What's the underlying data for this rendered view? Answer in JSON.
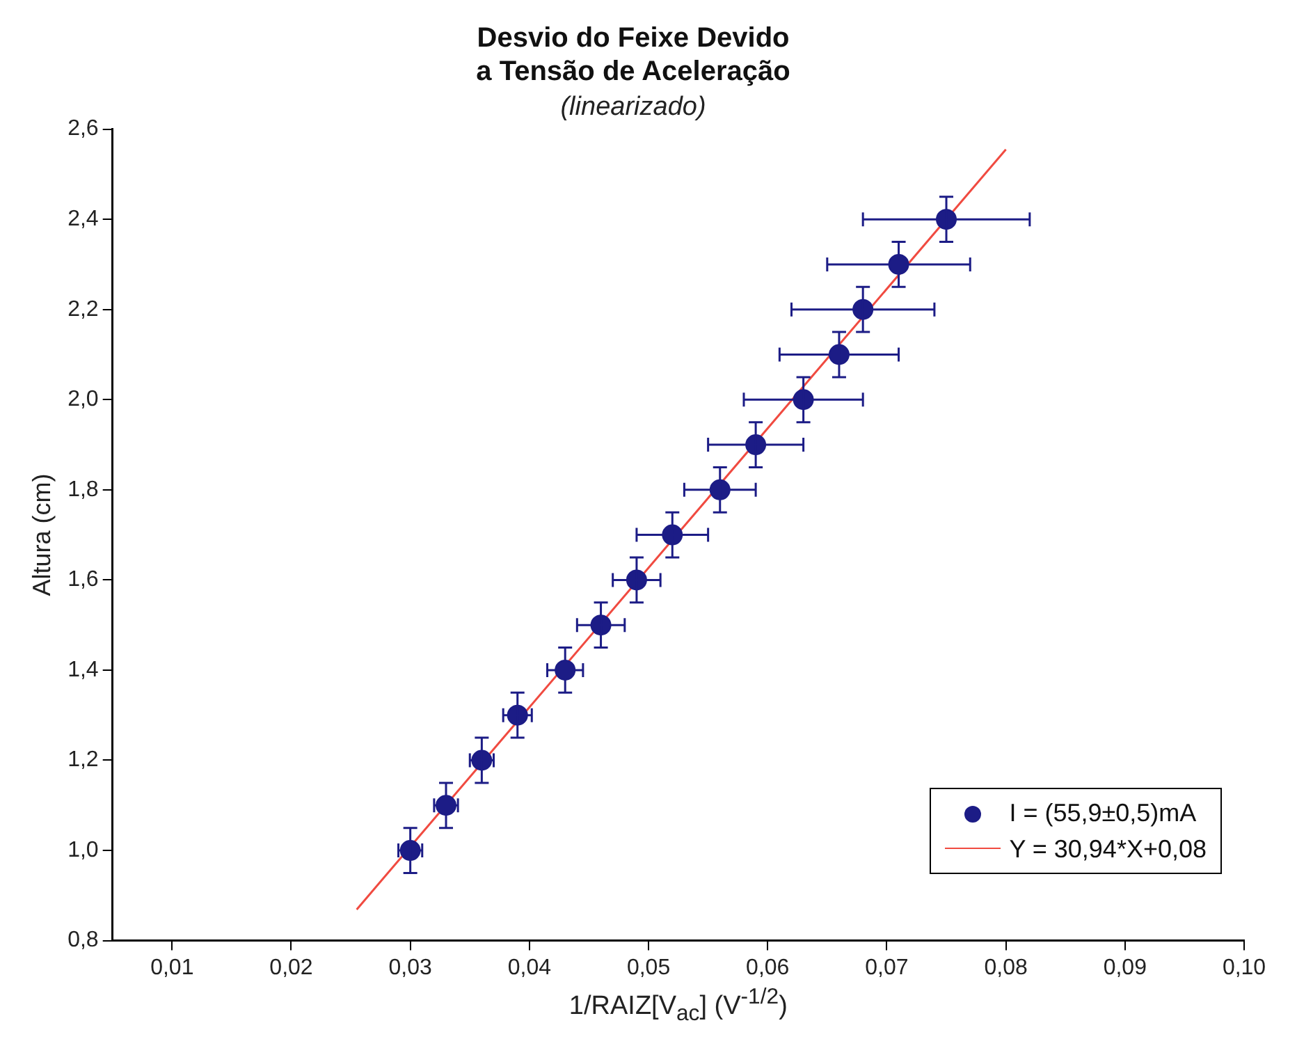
{
  "chart_data": {
    "type": "scatter",
    "title": [
      "Desvio do Feixe Devido",
      "a Tensão de Aceleração"
    ],
    "subtitle": "(linearizado)",
    "xlabel": "1/RAIZ[V$_{ac}$] (V$^{-1/2}$)",
    "ylabel": "Altura (cm)",
    "xlim": [
      0.005,
      0.1
    ],
    "xticks": [
      {
        "value": 0.01,
        "label": "0,01"
      },
      {
        "value": 0.02,
        "label": "0,02"
      },
      {
        "value": 0.03,
        "label": "0,03"
      },
      {
        "value": 0.04,
        "label": "0,04"
      },
      {
        "value": 0.05,
        "label": "0,05"
      },
      {
        "value": 0.06,
        "label": "0,06"
      },
      {
        "value": 0.07,
        "label": "0,07"
      },
      {
        "value": 0.08,
        "label": "0,08"
      },
      {
        "value": 0.09,
        "label": "0,09"
      },
      {
        "value": 0.1,
        "label": "0,10"
      }
    ],
    "ylim": [
      0.8,
      2.6
    ],
    "yticks": [
      {
        "value": 0.8,
        "label": "0,8"
      },
      {
        "value": 1.0,
        "label": "1,0"
      },
      {
        "value": 1.2,
        "label": "1,2"
      },
      {
        "value": 1.4,
        "label": "1,4"
      },
      {
        "value": 1.6,
        "label": "1,6"
      },
      {
        "value": 1.8,
        "label": "1,8"
      },
      {
        "value": 2.0,
        "label": "2,0"
      },
      {
        "value": 2.2,
        "label": "2,2"
      },
      {
        "value": 2.4,
        "label": "2,4"
      },
      {
        "value": 2.6,
        "label": "2,6"
      }
    ],
    "grid": false,
    "legend": "bottom right",
    "marker": "circle",
    "series": [
      {
        "name": "I = (55,9±0,5)mA",
        "color": "#1c1c86",
        "x": [
          0.03,
          0.033,
          0.036,
          0.039,
          0.043,
          0.046,
          0.049,
          0.052,
          0.056,
          0.059,
          0.063,
          0.066,
          0.068,
          0.071,
          0.075
        ],
        "values": [
          1.0,
          1.1,
          1.2,
          1.3,
          1.4,
          1.5,
          1.6,
          1.7,
          1.8,
          1.9,
          2.0,
          2.1,
          2.2,
          2.3,
          2.4
        ],
        "errors": [
          0.05,
          0.05,
          0.05,
          0.05,
          0.05,
          0.05,
          0.05,
          0.05,
          0.05,
          0.05,
          0.05,
          0.05,
          0.05,
          0.05,
          0.05
        ],
        "xerrors": [
          0.001,
          0.001,
          0.001,
          0.0012,
          0.0015,
          0.002,
          0.002,
          0.003,
          0.003,
          0.004,
          0.005,
          0.005,
          0.006,
          0.006,
          0.007
        ]
      },
      {
        "name": "Y = 30,94*X+0,08",
        "type": "line",
        "color": "#f04a40",
        "marker": "none",
        "line_style": "solid",
        "x": [
          0.0255,
          0.08
        ],
        "values": [
          0.869,
          2.555
        ]
      }
    ]
  }
}
